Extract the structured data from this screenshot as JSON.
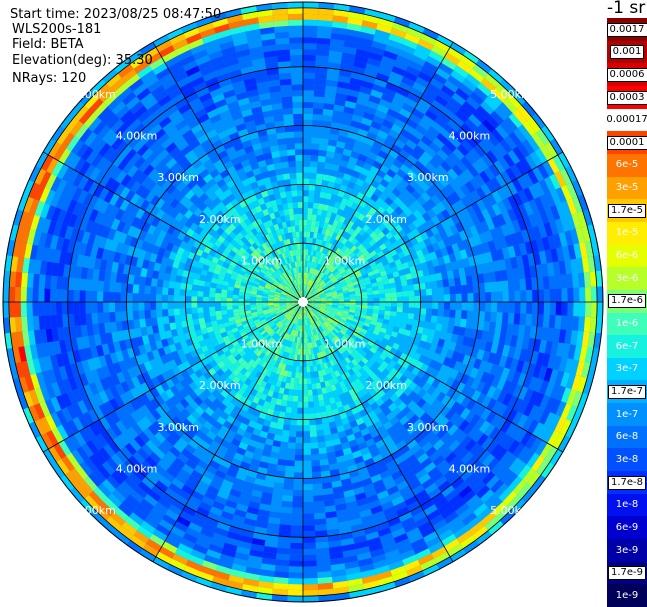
{
  "info": {
    "start_time": "Start time: 2023/08/25 08:47:50",
    "instrument": "WLS200s-181",
    "field": "Field: BETA",
    "elevation": "Elevation(deg): 35.30",
    "nrays": "NRays: 120"
  },
  "colorbar": {
    "unit": "-1 sr",
    "levels": [
      {
        "label": "0.0017",
        "color": "#8b0000",
        "style": "light"
      },
      {
        "label": "0.001",
        "color": "#b30000",
        "style": "light"
      },
      {
        "label": "0.0006",
        "color": "#d90000",
        "style": "light"
      },
      {
        "label": "0.0003",
        "color": "#ff0000",
        "style": "light"
      },
      {
        "label": "0.00017",
        "color": "#ffffff",
        "style": "dark-on-white"
      },
      {
        "label": "0.0001",
        "color": "#ff4400",
        "style": "light"
      },
      {
        "label": "6e-5",
        "color": "#ff7300",
        "style": "dark"
      },
      {
        "label": "3e-5",
        "color": "#ffa000",
        "style": "dark"
      },
      {
        "label": "1.7e-5",
        "color": "#ffc800",
        "style": "light"
      },
      {
        "label": "1e-5",
        "color": "#ffee00",
        "style": "dark"
      },
      {
        "label": "6e-6",
        "color": "#e6ff00",
        "style": "dark"
      },
      {
        "label": "3e-6",
        "color": "#b6ff29",
        "style": "dark"
      },
      {
        "label": "1.7e-6",
        "color": "#7bff7b",
        "style": "light"
      },
      {
        "label": "1e-6",
        "color": "#3dffba",
        "style": "dark"
      },
      {
        "label": "6e-7",
        "color": "#17f2e0",
        "style": "dark"
      },
      {
        "label": "3e-7",
        "color": "#00d2ff",
        "style": "dark"
      },
      {
        "label": "1.7e-7",
        "color": "#00b0ff",
        "style": "light"
      },
      {
        "label": "1e-7",
        "color": "#0090ff",
        "style": "dark"
      },
      {
        "label": "6e-8",
        "color": "#0070ff",
        "style": "dark"
      },
      {
        "label": "3e-8",
        "color": "#0050ff",
        "style": "dark"
      },
      {
        "label": "1.7e-8",
        "color": "#0030ff",
        "style": "light"
      },
      {
        "label": "1e-8",
        "color": "#0010f0",
        "style": "dark"
      },
      {
        "label": "6e-9",
        "color": "#0000d0",
        "style": "dark"
      },
      {
        "label": "3e-9",
        "color": "#0000a8",
        "style": "dark"
      },
      {
        "label": "1.7e-9",
        "color": "#000080",
        "style": "light"
      },
      {
        "label": "1e-9",
        "color": "#00005a",
        "style": "dark"
      }
    ]
  },
  "chart_data": {
    "type": "heatmap",
    "projection": "polar PPI",
    "rings_km": [
      1,
      2,
      3,
      4,
      5
    ],
    "ring_labels": [
      "1.00km",
      "2.00km",
      "3.00km",
      "4.00km",
      "5.00km"
    ],
    "max_range_km": 5.1,
    "spoke_count": 12,
    "n_rays": 120,
    "grid": true,
    "field": "BETA",
    "radial_profile": [
      {
        "r_km": 0.0,
        "level": 1.7e-06
      },
      {
        "r_km": 1.0,
        "level": 6e-07
      },
      {
        "r_km": 2.0,
        "level": 3e-07
      },
      {
        "r_km": 2.5,
        "level": 1e-07
      },
      {
        "r_km": 3.5,
        "level": 6e-08
      },
      {
        "r_km": 4.4,
        "level": 3e-08
      },
      {
        "r_km": 4.75,
        "level": 1.7e-07
      },
      {
        "r_km": 4.9,
        "level": 3e-05
      },
      {
        "r_km": 5.0,
        "level": 1.7e-07
      }
    ]
  }
}
